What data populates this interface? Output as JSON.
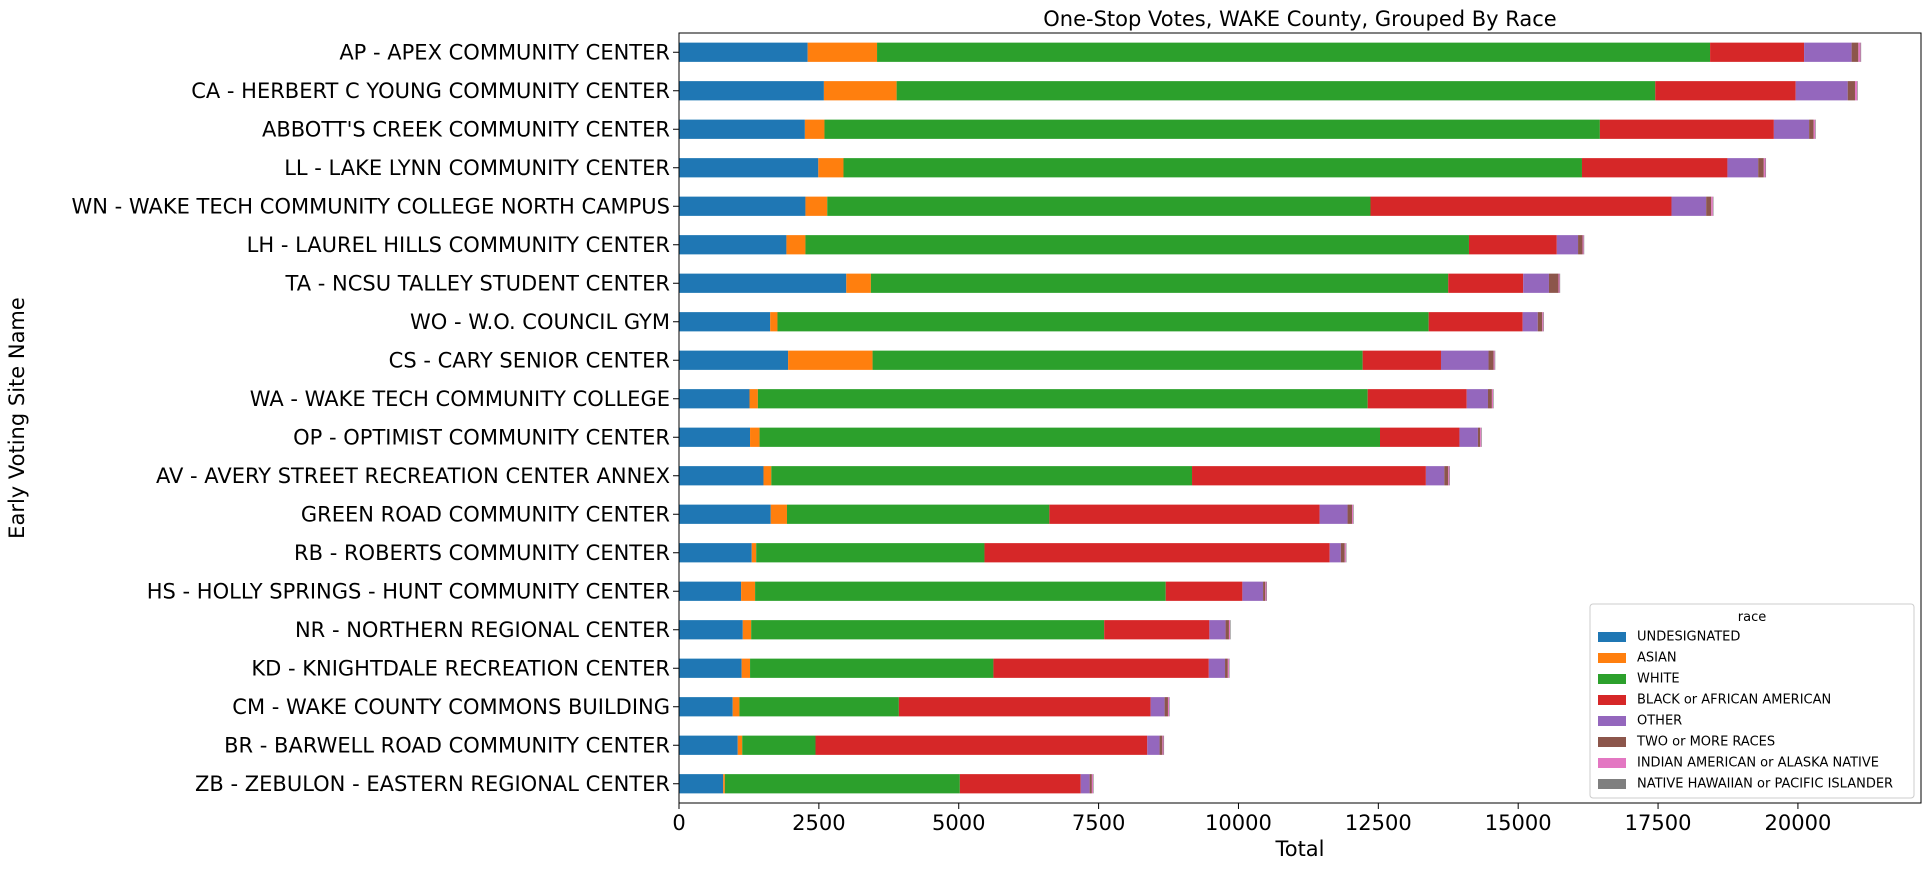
{
  "chart_data": {
    "type": "bar",
    "orientation": "horizontal",
    "stacked": true,
    "title": "One-Stop Votes, WAKE County, Grouped By Race",
    "xlabel": "Total",
    "ylabel": "Early Voting Site Name",
    "xlim": [
      0,
      22200
    ],
    "xticks": [
      0,
      2500,
      5000,
      7500,
      10000,
      12500,
      15000,
      17500,
      20000
    ],
    "xtick_labels": [
      "0",
      "2500",
      "5000",
      "7500",
      "10000",
      "12500",
      "15000",
      "17500",
      "20000"
    ],
    "grid": false,
    "legend_title": "race",
    "legend_position": "lower-right",
    "categories": [
      "AP - APEX COMMUNITY CENTER",
      "CA - HERBERT C YOUNG COMMUNITY CENTER",
      "ABBOTT'S CREEK COMMUNITY CENTER",
      "LL - LAKE LYNN COMMUNITY CENTER",
      "WN - WAKE TECH COMMUNITY COLLEGE NORTH CAMPUS",
      "LH - LAUREL HILLS COMMUNITY CENTER",
      "TA - NCSU TALLEY STUDENT CENTER",
      "WO - W.O. COUNCIL GYM",
      "CS - CARY SENIOR CENTER",
      "WA - WAKE TECH COMMUNITY COLLEGE",
      "OP - OPTIMIST COMMUNITY CENTER",
      "AV - AVERY STREET RECREATION CENTER ANNEX",
      "GREEN ROAD COMMUNITY CENTER",
      "RB - ROBERTS COMMUNITY CENTER",
      "HS - HOLLY SPRINGS - HUNT COMMUNITY CENTER",
      "NR - NORTHERN REGIONAL CENTER",
      "KD - KNIGHTDALE RECREATION CENTER",
      "CM - WAKE COUNTY COMMONS BUILDING",
      "BR - BARWELL ROAD COMMUNITY CENTER",
      "ZB - ZEBULON - EASTERN REGIONAL CENTER"
    ],
    "series": [
      {
        "name": "UNDESIGNATED",
        "color": "#1f77b4",
        "values": [
          2300,
          2590,
          2250,
          2490,
          2260,
          1920,
          2990,
          1630,
          1950,
          1260,
          1270,
          1510,
          1640,
          1300,
          1110,
          1140,
          1120,
          960,
          1050,
          790
        ]
      },
      {
        "name": "ASIAN",
        "color": "#ff7f0e",
        "values": [
          1240,
          1300,
          350,
          450,
          390,
          340,
          440,
          130,
          1510,
          150,
          170,
          140,
          290,
          80,
          250,
          150,
          150,
          120,
          80,
          30
        ]
      },
      {
        "name": "WHITE",
        "color": "#2ca02c",
        "values": [
          14890,
          13560,
          13860,
          13200,
          9710,
          11860,
          10320,
          11640,
          8760,
          10900,
          11090,
          7520,
          4690,
          4080,
          7340,
          6310,
          4350,
          2850,
          1310,
          4200
        ]
      },
      {
        "name": "BLACK or AFRICAN AMERICAN",
        "color": "#d62728",
        "values": [
          1680,
          2510,
          3110,
          2600,
          5380,
          1570,
          1340,
          1680,
          1400,
          1770,
          1420,
          4180,
          4830,
          6170,
          1370,
          1880,
          3850,
          4500,
          5930,
          2160
        ]
      },
      {
        "name": "OTHER",
        "color": "#9467bd",
        "values": [
          850,
          930,
          630,
          550,
          620,
          380,
          460,
          270,
          850,
          380,
          330,
          330,
          500,
          200,
          370,
          290,
          290,
          250,
          220,
          160
        ]
      },
      {
        "name": "TWO or MORE RACES",
        "color": "#8c564b",
        "values": [
          120,
          130,
          80,
          100,
          90,
          80,
          170,
          80,
          90,
          70,
          40,
          70,
          80,
          70,
          40,
          60,
          50,
          60,
          50,
          40
        ]
      },
      {
        "name": "INDIAN AMERICAN or ALASKA NATIVE",
        "color": "#e377c2",
        "values": [
          40,
          40,
          30,
          30,
          30,
          20,
          20,
          20,
          20,
          20,
          20,
          20,
          20,
          20,
          20,
          20,
          20,
          20,
          20,
          20
        ]
      },
      {
        "name": "NATIVE HAWAIIAN or PACIFIC ISLANDER",
        "color": "#7f7f7f",
        "values": [
          10,
          10,
          10,
          10,
          10,
          10,
          10,
          10,
          10,
          10,
          10,
          10,
          10,
          10,
          10,
          10,
          10,
          10,
          10,
          10
        ]
      }
    ]
  }
}
